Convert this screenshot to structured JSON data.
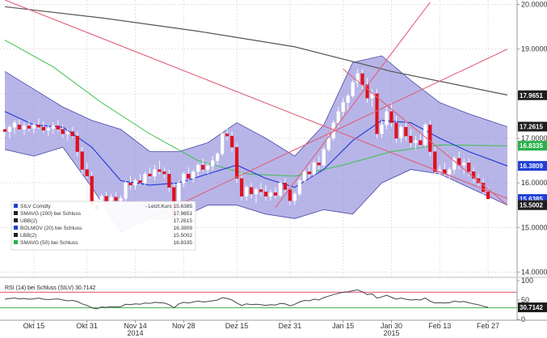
{
  "chart_data": [
    {
      "type": "candlestick",
      "title": "",
      "y_axis": {
        "side": "right",
        "min": 13.9,
        "max": 20.1,
        "ticks": [
          14.0,
          15.0,
          16.0,
          17.0,
          18.0,
          19.0,
          20.0
        ],
        "tick_labels": [
          "14.0000",
          "15.0000",
          "16.0000",
          "17.0000",
          "18.0000",
          "19.0000",
          "20.0000"
        ]
      },
      "x_axis": {
        "tick_labels": [
          "Okt 15",
          "Okt 31",
          "Nov 14",
          "Nov 28",
          "Dez 15",
          "Dez 31",
          "Jan 15",
          "Jan 30",
          "Feb 13",
          "Feb 27"
        ],
        "tick_index": [
          6,
          17,
          27,
          37,
          48,
          59,
          70,
          80,
          90,
          100
        ],
        "year_labels": [
          "2014",
          "2015"
        ],
        "year_index": [
          27,
          80
        ]
      },
      "grid": true,
      "candles": [
        [
          17.2,
          17.32,
          17.05,
          17.15
        ],
        [
          17.15,
          17.3,
          17.0,
          17.25
        ],
        [
          17.25,
          17.4,
          17.1,
          17.35
        ],
        [
          17.3,
          17.42,
          17.18,
          17.2
        ],
        [
          17.2,
          17.35,
          17.08,
          17.28
        ],
        [
          17.28,
          17.4,
          17.15,
          17.22
        ],
        [
          17.22,
          17.34,
          17.1,
          17.3
        ],
        [
          17.3,
          17.45,
          17.2,
          17.25
        ],
        [
          17.25,
          17.38,
          17.12,
          17.18
        ],
        [
          17.18,
          17.3,
          17.05,
          17.22
        ],
        [
          17.22,
          17.36,
          17.1,
          17.28
        ],
        [
          17.28,
          17.4,
          17.15,
          17.2
        ],
        [
          17.2,
          17.3,
          17.0,
          17.1
        ],
        [
          17.1,
          17.22,
          16.95,
          17.15
        ],
        [
          17.15,
          17.25,
          17.0,
          17.05
        ],
        [
          17.05,
          17.15,
          16.6,
          16.7
        ],
        [
          16.7,
          16.8,
          16.2,
          16.3
        ],
        [
          16.3,
          16.45,
          16.1,
          16.15
        ],
        [
          16.15,
          16.25,
          15.4,
          15.5
        ],
        [
          15.5,
          15.65,
          15.05,
          15.4
        ],
        [
          15.4,
          15.75,
          15.35,
          15.7
        ],
        [
          15.7,
          15.8,
          15.5,
          15.55
        ],
        [
          15.55,
          15.75,
          15.45,
          15.68
        ],
        [
          15.68,
          15.8,
          15.55,
          15.6
        ],
        [
          15.6,
          15.72,
          15.5,
          15.65
        ],
        [
          15.65,
          16.05,
          15.6,
          16.0
        ],
        [
          16.0,
          16.15,
          15.85,
          15.95
        ],
        [
          15.95,
          16.1,
          15.85,
          16.05
        ],
        [
          16.05,
          16.2,
          15.95,
          16.0
        ],
        [
          16.0,
          16.25,
          15.95,
          16.2
        ],
        [
          16.2,
          16.35,
          16.1,
          16.15
        ],
        [
          16.15,
          16.4,
          16.05,
          16.3
        ],
        [
          16.3,
          16.5,
          16.2,
          16.25
        ],
        [
          16.25,
          16.35,
          16.1,
          16.2
        ],
        [
          16.2,
          16.3,
          15.8,
          15.9
        ],
        [
          15.9,
          16.0,
          15.0,
          15.2
        ],
        [
          15.2,
          16.05,
          15.15,
          16.0
        ],
        [
          16.0,
          16.25,
          15.9,
          16.2
        ],
        [
          16.2,
          16.35,
          16.05,
          16.1
        ],
        [
          16.1,
          16.3,
          16.0,
          16.25
        ],
        [
          16.25,
          16.45,
          16.15,
          16.4
        ],
        [
          16.4,
          16.55,
          16.25,
          16.3
        ],
        [
          16.3,
          16.45,
          16.2,
          16.38
        ],
        [
          16.38,
          16.6,
          16.28,
          16.5
        ],
        [
          16.5,
          16.7,
          16.4,
          16.65
        ],
        [
          16.65,
          17.2,
          16.6,
          17.1
        ],
        [
          17.1,
          17.25,
          16.95,
          17.05
        ],
        [
          17.05,
          17.15,
          16.7,
          16.8
        ],
        [
          16.8,
          16.9,
          16.0,
          16.1
        ],
        [
          16.1,
          16.25,
          15.6,
          15.7
        ],
        [
          15.7,
          15.95,
          15.6,
          15.9
        ],
        [
          15.9,
          16.0,
          15.65,
          15.75
        ],
        [
          15.75,
          15.9,
          15.55,
          15.85
        ],
        [
          15.85,
          16.0,
          15.7,
          15.8
        ],
        [
          15.8,
          15.95,
          15.6,
          15.7
        ],
        [
          15.7,
          15.85,
          15.6,
          15.78
        ],
        [
          15.78,
          15.9,
          15.65,
          15.72
        ],
        [
          15.72,
          16.05,
          15.68,
          16.0
        ],
        [
          16.0,
          16.1,
          15.8,
          15.85
        ],
        [
          15.85,
          15.95,
          15.5,
          15.6
        ],
        [
          15.6,
          15.8,
          15.5,
          15.75
        ],
        [
          15.75,
          16.1,
          15.7,
          16.05
        ],
        [
          16.05,
          16.3,
          16.0,
          16.25
        ],
        [
          16.25,
          16.4,
          16.1,
          16.2
        ],
        [
          16.2,
          16.5,
          16.15,
          16.45
        ],
        [
          16.45,
          16.6,
          16.3,
          16.4
        ],
        [
          16.4,
          16.8,
          16.35,
          16.75
        ],
        [
          16.75,
          17.1,
          16.7,
          17.0
        ],
        [
          17.0,
          17.4,
          16.95,
          17.35
        ],
        [
          17.35,
          17.7,
          17.25,
          17.6
        ],
        [
          17.6,
          17.9,
          17.5,
          17.8
        ],
        [
          17.8,
          18.0,
          17.6,
          17.95
        ],
        [
          17.95,
          18.3,
          17.9,
          18.25
        ],
        [
          18.25,
          18.55,
          18.15,
          18.45
        ],
        [
          18.45,
          18.55,
          18.1,
          18.2
        ],
        [
          18.2,
          18.35,
          17.8,
          17.9
        ],
        [
          17.9,
          18.1,
          17.7,
          18.0
        ],
        [
          18.0,
          18.1,
          17.0,
          17.1
        ],
        [
          17.1,
          17.4,
          17.0,
          17.3
        ],
        [
          17.3,
          17.7,
          17.2,
          17.6
        ],
        [
          17.6,
          17.8,
          17.25,
          17.35
        ],
        [
          17.35,
          17.5,
          16.9,
          17.0
        ],
        [
          17.0,
          17.3,
          16.9,
          17.25
        ],
        [
          17.25,
          17.4,
          16.95,
          17.05
        ],
        [
          17.05,
          17.2,
          16.8,
          16.9
        ],
        [
          16.9,
          17.05,
          16.75,
          16.95
        ],
        [
          16.95,
          17.1,
          16.8,
          16.85
        ],
        [
          16.85,
          17.35,
          16.8,
          17.3
        ],
        [
          17.3,
          17.4,
          16.6,
          16.7
        ],
        [
          16.7,
          16.8,
          16.15,
          16.25
        ],
        [
          16.25,
          16.4,
          16.1,
          16.3
        ],
        [
          16.3,
          16.45,
          16.15,
          16.2
        ],
        [
          16.2,
          16.35,
          16.05,
          16.3
        ],
        [
          16.3,
          16.6,
          16.2,
          16.55
        ],
        [
          16.55,
          16.7,
          16.3,
          16.4
        ],
        [
          16.4,
          16.55,
          16.2,
          16.45
        ],
        [
          16.45,
          16.55,
          16.15,
          16.25
        ],
        [
          16.25,
          16.35,
          16.0,
          16.1
        ],
        [
          16.1,
          16.2,
          15.9,
          16.0
        ],
        [
          16.0,
          16.1,
          15.7,
          15.8
        ],
        [
          15.8,
          15.9,
          15.55,
          15.64
        ]
      ],
      "sma200": [
        [
          0,
          19.95
        ],
        [
          20,
          19.7
        ],
        [
          40,
          19.4
        ],
        [
          60,
          19.05
        ],
        [
          80,
          18.5
        ],
        [
          104,
          17.97
        ]
      ],
      "sma50": [
        [
          0,
          19.2
        ],
        [
          10,
          18.6
        ],
        [
          20,
          17.8
        ],
        [
          30,
          17.1
        ],
        [
          40,
          16.5
        ],
        [
          50,
          16.2
        ],
        [
          60,
          16.15
        ],
        [
          70,
          16.4
        ],
        [
          80,
          16.7
        ],
        [
          90,
          16.85
        ],
        [
          104,
          16.83
        ]
      ],
      "bollinger_mid": [
        [
          0,
          17.6
        ],
        [
          6,
          17.3
        ],
        [
          12,
          17.25
        ],
        [
          18,
          16.8
        ],
        [
          24,
          16.05
        ],
        [
          30,
          15.95
        ],
        [
          36,
          16.0
        ],
        [
          42,
          16.2
        ],
        [
          48,
          16.4
        ],
        [
          54,
          16.1
        ],
        [
          60,
          15.9
        ],
        [
          66,
          16.3
        ],
        [
          72,
          16.95
        ],
        [
          78,
          17.4
        ],
        [
          84,
          17.35
        ],
        [
          90,
          17.0
        ],
        [
          96,
          16.7
        ],
        [
          104,
          16.38
        ]
      ],
      "bollinger_upper": [
        [
          0,
          18.5
        ],
        [
          6,
          18.1
        ],
        [
          12,
          17.7
        ],
        [
          18,
          17.4
        ],
        [
          24,
          17.2
        ],
        [
          30,
          16.7
        ],
        [
          36,
          16.7
        ],
        [
          42,
          16.9
        ],
        [
          48,
          17.35
        ],
        [
          54,
          17.0
        ],
        [
          60,
          16.6
        ],
        [
          66,
          17.3
        ],
        [
          72,
          18.7
        ],
        [
          78,
          18.85
        ],
        [
          84,
          18.3
        ],
        [
          90,
          17.8
        ],
        [
          96,
          17.55
        ],
        [
          104,
          17.26
        ]
      ],
      "bollinger_lower": [
        [
          0,
          16.75
        ],
        [
          6,
          16.6
        ],
        [
          12,
          16.8
        ],
        [
          18,
          15.9
        ],
        [
          24,
          14.9
        ],
        [
          30,
          15.2
        ],
        [
          36,
          15.2
        ],
        [
          42,
          15.5
        ],
        [
          48,
          15.5
        ],
        [
          54,
          15.3
        ],
        [
          60,
          15.2
        ],
        [
          66,
          15.4
        ],
        [
          72,
          15.3
        ],
        [
          78,
          16.0
        ],
        [
          84,
          16.3
        ],
        [
          90,
          16.2
        ],
        [
          96,
          15.9
        ],
        [
          104,
          15.5
        ]
      ],
      "trendlines": [
        {
          "color": "#e0607a",
          "points": [
            [
              0,
              20.1
            ],
            [
              104,
              15.65
            ]
          ]
        },
        {
          "color": "#e0607a",
          "points": [
            [
              26,
              15.0
            ],
            [
              104,
              19.0
            ]
          ]
        },
        {
          "color": "#e0607a",
          "points": [
            [
              56,
              15.45
            ],
            [
              88,
              20.05
            ]
          ]
        },
        {
          "color": "#e0607a",
          "points": [
            [
              70,
              18.55
            ],
            [
              104,
              15.5
            ]
          ]
        }
      ],
      "right_labels": [
        {
          "text": "17.9651",
          "value": 17.9651,
          "color": "#1f1f1f"
        },
        {
          "text": "17.2615",
          "value": 17.2615,
          "color": "#1f1f1f"
        },
        {
          "text": "16.8335",
          "value": 16.8335,
          "color": "#27b24a"
        },
        {
          "text": "16.3809",
          "value": 16.3809,
          "color": "#1f3fd6"
        },
        {
          "text": "15.6385",
          "value": 15.6385,
          "color": "#1f3fd6"
        },
        {
          "text": "15.5002",
          "value": 15.5002,
          "color": "#1f1f1f"
        }
      ],
      "legend": {
        "entries": [
          {
            "text": "SILV Comdty",
            "value": "- Letzt.Kurs 15.6385",
            "color": "#1f3fd6"
          },
          {
            "text": "SMAVG (200) bei Schluss",
            "value": "17.9651",
            "color": "#222222"
          },
          {
            "text": "UBB(2)",
            "value": "17.2615",
            "color": "#222222"
          },
          {
            "text": "BOLMOV (20) bei Schluss",
            "value": "16.3809",
            "color": "#1f3fd6"
          },
          {
            "text": "LBB(2)",
            "value": "15.5002",
            "color": "#222222"
          },
          {
            "text": "SMAVG (50) bei Schluss",
            "value": "16.8335",
            "color": "#27b24a"
          }
        ]
      }
    },
    {
      "type": "line",
      "title": "RSI (14) bei Schluss (SILV) 30.7142",
      "y_axis": {
        "side": "right",
        "min": 0,
        "max": 100,
        "ticks": [
          0,
          50,
          100
        ],
        "tick_labels": [
          "0",
          "50",
          "100"
        ]
      },
      "levels": [
        {
          "value": 70,
          "color": "#e05070"
        },
        {
          "value": 30,
          "color": "#40b050"
        }
      ],
      "series": [
        {
          "name": "RSI (14) bei Schluss (SILV)",
          "values": [
            52,
            54,
            55,
            53,
            54,
            52,
            53,
            55,
            52,
            51,
            52,
            53,
            50,
            48,
            49,
            46,
            40,
            36,
            30,
            27,
            32,
            31,
            33,
            32,
            33,
            39,
            38,
            40,
            39,
            42,
            41,
            44,
            43,
            42,
            38,
            30,
            40,
            44,
            42,
            45,
            47,
            45,
            46,
            48,
            50,
            56,
            54,
            50,
            42,
            36,
            40,
            38,
            39,
            38,
            36,
            38,
            37,
            41,
            40,
            35,
            39,
            45,
            49,
            48,
            52,
            50,
            56,
            60,
            64,
            67,
            70,
            71,
            74,
            76,
            71,
            64,
            66,
            55,
            58,
            62,
            57,
            52,
            55,
            52,
            50,
            51,
            50,
            55,
            47,
            42,
            43,
            42,
            43,
            47,
            45,
            46,
            43,
            40,
            38,
            34,
            31
          ]
        }
      ],
      "value_label": "30.7142"
    }
  ]
}
